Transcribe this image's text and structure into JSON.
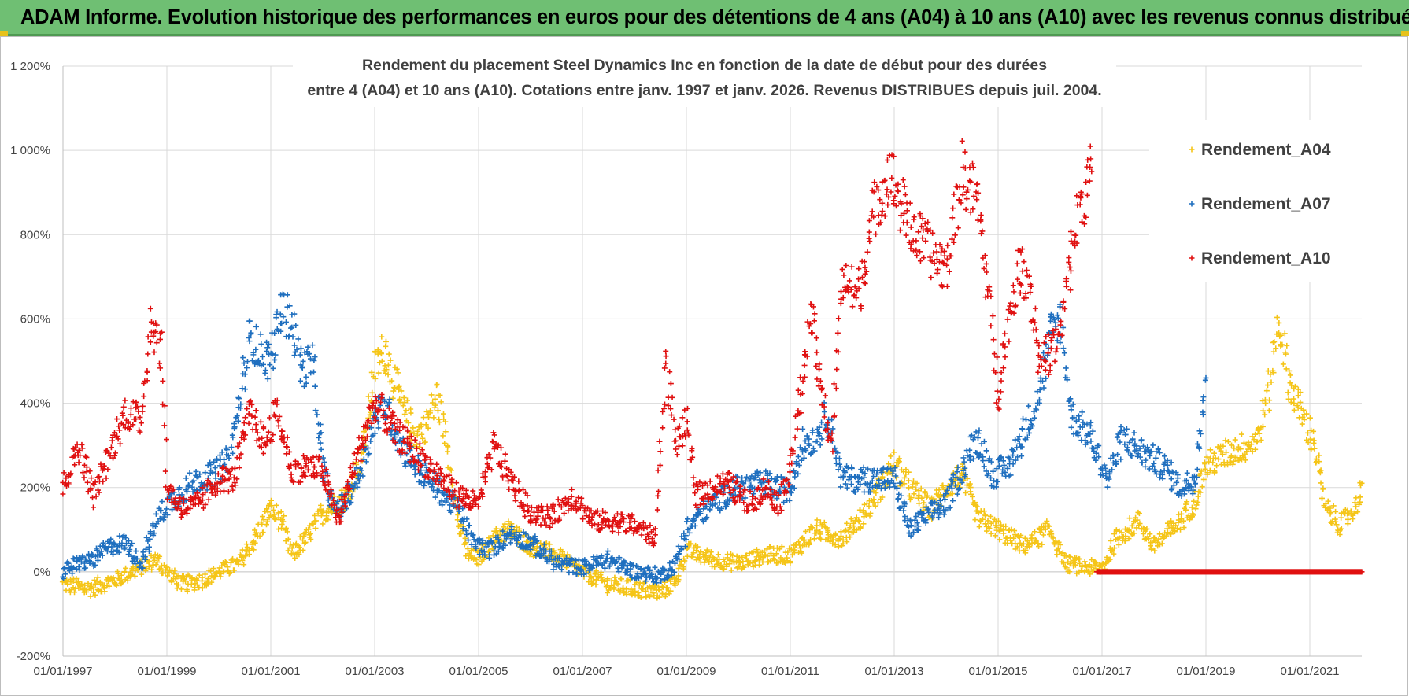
{
  "header": {
    "title": "ADAM Informe. Evolution historique des performances en euros pour des détentions de 4 ans (A04) à 10 ans (A10) avec les revenus connus distribués"
  },
  "colors": {
    "banner": "#6fbf73",
    "A04": "#f5c518",
    "A07": "#1f6fbf",
    "A10": "#e01010",
    "grid": "#d9d9d9"
  },
  "chart_data": {
    "type": "scatter",
    "marker": "plus",
    "title_lines": [
      "Rendement du placement Steel Dynamics Inc en fonction de la date de début pour des durées",
      "entre 4 (A04) et 10 ans (A10).  Cotations entre janv. 1997 et janv. 2026. Revenus DISTRIBUES depuis juil. 2004."
    ],
    "x_range": [
      1997.0,
      2022.0
    ],
    "x_ticks": [
      "01/01/1997",
      "01/01/1999",
      "01/01/2001",
      "01/01/2003",
      "01/01/2005",
      "01/01/2007",
      "01/01/2009",
      "01/01/2011",
      "01/01/2013",
      "01/01/2015",
      "01/01/2017",
      "01/01/2019",
      "01/01/2021"
    ],
    "y_range": [
      -200,
      1200
    ],
    "y_ticks": [
      "-200%",
      "0%",
      "200%",
      "400%",
      "600%",
      "800%",
      "1 000%",
      "1 200%"
    ],
    "legend_position": "top-right",
    "series": [
      {
        "name": "Rendement_A04",
        "key": "A04",
        "points": [
          [
            1997.0,
            -30
          ],
          [
            1997.5,
            -40
          ],
          [
            1998.0,
            -20
          ],
          [
            1998.5,
            10
          ],
          [
            1998.8,
            30
          ],
          [
            1999.0,
            0
          ],
          [
            1999.3,
            -30
          ],
          [
            1999.7,
            -20
          ],
          [
            2000.0,
            0
          ],
          [
            2000.4,
            20
          ],
          [
            2000.7,
            80
          ],
          [
            2001.0,
            150
          ],
          [
            2001.2,
            120
          ],
          [
            2001.4,
            40
          ],
          [
            2001.7,
            80
          ],
          [
            2002.0,
            140
          ],
          [
            2002.5,
            180
          ],
          [
            2002.8,
            300
          ],
          [
            2003.0,
            480
          ],
          [
            2003.2,
            530
          ],
          [
            2003.5,
            400
          ],
          [
            2003.8,
            320
          ],
          [
            2004.0,
            350
          ],
          [
            2004.2,
            420
          ],
          [
            2004.4,
            300
          ],
          [
            2004.6,
            120
          ],
          [
            2004.8,
            40
          ],
          [
            2005.0,
            30
          ],
          [
            2005.3,
            80
          ],
          [
            2005.6,
            100
          ],
          [
            2006.0,
            60
          ],
          [
            2006.5,
            40
          ],
          [
            2007.0,
            0
          ],
          [
            2007.5,
            -30
          ],
          [
            2008.0,
            -40
          ],
          [
            2008.5,
            -50
          ],
          [
            2008.8,
            -20
          ],
          [
            2009.0,
            50
          ],
          [
            2009.5,
            30
          ],
          [
            2010.0,
            20
          ],
          [
            2010.5,
            40
          ],
          [
            2011.0,
            40
          ],
          [
            2011.5,
            100
          ],
          [
            2012.0,
            80
          ],
          [
            2012.5,
            150
          ],
          [
            2013.0,
            260
          ],
          [
            2013.3,
            200
          ],
          [
            2013.7,
            150
          ],
          [
            2014.0,
            200
          ],
          [
            2014.3,
            230
          ],
          [
            2014.6,
            130
          ],
          [
            2015.0,
            100
          ],
          [
            2015.5,
            60
          ],
          [
            2016.0,
            100
          ],
          [
            2016.3,
            20
          ],
          [
            2016.7,
            10
          ],
          [
            2017.0,
            10
          ],
          [
            2017.3,
            80
          ],
          [
            2017.7,
            120
          ],
          [
            2018.0,
            60
          ],
          [
            2018.5,
            120
          ],
          [
            2018.8,
            170
          ],
          [
            2019.0,
            250
          ],
          [
            2019.4,
            280
          ],
          [
            2019.8,
            300
          ],
          [
            2020.0,
            320
          ],
          [
            2020.2,
            420
          ],
          [
            2020.4,
            600
          ],
          [
            2020.6,
            450
          ],
          [
            2020.9,
            360
          ],
          [
            2021.1,
            300
          ],
          [
            2021.3,
            150
          ],
          [
            2021.6,
            110
          ],
          [
            2021.9,
            160
          ],
          [
            2022.0,
            210
          ]
        ]
      },
      {
        "name": "Rendement_A07",
        "key": "A07",
        "points": [
          [
            1997.0,
            0
          ],
          [
            1997.3,
            20
          ],
          [
            1997.6,
            30
          ],
          [
            1997.9,
            60
          ],
          [
            1998.2,
            70
          ],
          [
            1998.5,
            20
          ],
          [
            1998.8,
            120
          ],
          [
            1999.0,
            160
          ],
          [
            1999.3,
            190
          ],
          [
            1999.6,
            220
          ],
          [
            1999.9,
            230
          ],
          [
            2000.2,
            270
          ],
          [
            2000.4,
            400
          ],
          [
            2000.6,
            560
          ],
          [
            2000.8,
            520
          ],
          [
            2001.0,
            500
          ],
          [
            2001.2,
            620
          ],
          [
            2001.4,
            600
          ],
          [
            2001.6,
            480
          ],
          [
            2001.8,
            500
          ],
          [
            2002.0,
            250
          ],
          [
            2002.2,
            150
          ],
          [
            2002.4,
            160
          ],
          [
            2002.7,
            230
          ],
          [
            2003.0,
            360
          ],
          [
            2003.2,
            400
          ],
          [
            2003.5,
            300
          ],
          [
            2003.8,
            250
          ],
          [
            2004.2,
            200
          ],
          [
            2004.6,
            150
          ],
          [
            2004.9,
            70
          ],
          [
            2005.2,
            50
          ],
          [
            2005.6,
            90
          ],
          [
            2006.0,
            70
          ],
          [
            2006.5,
            20
          ],
          [
            2007.0,
            10
          ],
          [
            2007.5,
            30
          ],
          [
            2008.0,
            0
          ],
          [
            2008.5,
            -10
          ],
          [
            2008.8,
            20
          ],
          [
            2009.0,
            100
          ],
          [
            2009.3,
            140
          ],
          [
            2009.6,
            170
          ],
          [
            2010.0,
            200
          ],
          [
            2010.5,
            210
          ],
          [
            2011.0,
            190
          ],
          [
            2011.2,
            300
          ],
          [
            2011.5,
            320
          ],
          [
            2011.7,
            380
          ],
          [
            2012.0,
            220
          ],
          [
            2012.5,
            220
          ],
          [
            2013.0,
            220
          ],
          [
            2013.3,
            100
          ],
          [
            2013.7,
            140
          ],
          [
            2014.0,
            160
          ],
          [
            2014.3,
            240
          ],
          [
            2014.6,
            320
          ],
          [
            2014.9,
            230
          ],
          [
            2015.2,
            250
          ],
          [
            2015.5,
            330
          ],
          [
            2015.8,
            430
          ],
          [
            2016.0,
            560
          ],
          [
            2016.2,
            600
          ],
          [
            2016.4,
            370
          ],
          [
            2016.8,
            320
          ],
          [
            2017.1,
            220
          ],
          [
            2017.4,
            320
          ],
          [
            2017.8,
            280
          ],
          [
            2018.2,
            250
          ],
          [
            2018.5,
            200
          ],
          [
            2018.8,
            220
          ],
          [
            2019.0,
            460
          ]
        ]
      },
      {
        "name": "Rendement_A10",
        "key": "A10",
        "points": [
          [
            1997.0,
            200
          ],
          [
            1997.3,
            300
          ],
          [
            1997.6,
            180
          ],
          [
            1997.9,
            280
          ],
          [
            1998.2,
            380
          ],
          [
            1998.5,
            360
          ],
          [
            1998.7,
            600
          ],
          [
            1998.9,
            520
          ],
          [
            1999.0,
            200
          ],
          [
            1999.3,
            150
          ],
          [
            1999.6,
            160
          ],
          [
            2000.0,
            220
          ],
          [
            2000.3,
            220
          ],
          [
            2000.6,
            380
          ],
          [
            2000.9,
            300
          ],
          [
            2001.1,
            380
          ],
          [
            2001.3,
            300
          ],
          [
            2001.4,
            240
          ],
          [
            2001.7,
            250
          ],
          [
            2002.0,
            240
          ],
          [
            2002.3,
            120
          ],
          [
            2002.6,
            250
          ],
          [
            2003.0,
            400
          ],
          [
            2003.4,
            330
          ],
          [
            2003.8,
            280
          ],
          [
            2004.2,
            230
          ],
          [
            2004.6,
            180
          ],
          [
            2005.0,
            160
          ],
          [
            2005.3,
            300
          ],
          [
            2005.6,
            220
          ],
          [
            2006.0,
            140
          ],
          [
            2006.4,
            130
          ],
          [
            2006.8,
            180
          ],
          [
            2007.2,
            120
          ],
          [
            2007.6,
            120
          ],
          [
            2008.0,
            110
          ],
          [
            2008.4,
            80
          ],
          [
            2008.6,
            500
          ],
          [
            2008.8,
            300
          ],
          [
            2009.0,
            350
          ],
          [
            2009.2,
            180
          ],
          [
            2009.5,
            200
          ],
          [
            2009.8,
            210
          ],
          [
            2010.2,
            160
          ],
          [
            2010.5,
            200
          ],
          [
            2010.8,
            160
          ],
          [
            2011.0,
            250
          ],
          [
            2011.2,
            420
          ],
          [
            2011.4,
            620
          ],
          [
            2011.6,
            420
          ],
          [
            2011.8,
            300
          ],
          [
            2012.0,
            700
          ],
          [
            2012.3,
            650
          ],
          [
            2012.6,
            850
          ],
          [
            2012.9,
            950
          ],
          [
            2013.1,
            880
          ],
          [
            2013.4,
            800
          ],
          [
            2013.7,
            760
          ],
          [
            2014.0,
            720
          ],
          [
            2014.3,
            950
          ],
          [
            2014.6,
            880
          ],
          [
            2014.8,
            680
          ],
          [
            2015.0,
            420
          ],
          [
            2015.2,
            600
          ],
          [
            2015.4,
            720
          ],
          [
            2015.6,
            700
          ],
          [
            2015.8,
            500
          ],
          [
            2016.0,
            520
          ],
          [
            2016.2,
            560
          ],
          [
            2016.4,
            750
          ],
          [
            2016.6,
            880
          ],
          [
            2016.8,
            950
          ]
        ]
      }
    ],
    "zero_segment": {
      "series": "Rendement_A10",
      "x_from": 2016.9,
      "x_to": 2022.0,
      "y": 0
    }
  }
}
